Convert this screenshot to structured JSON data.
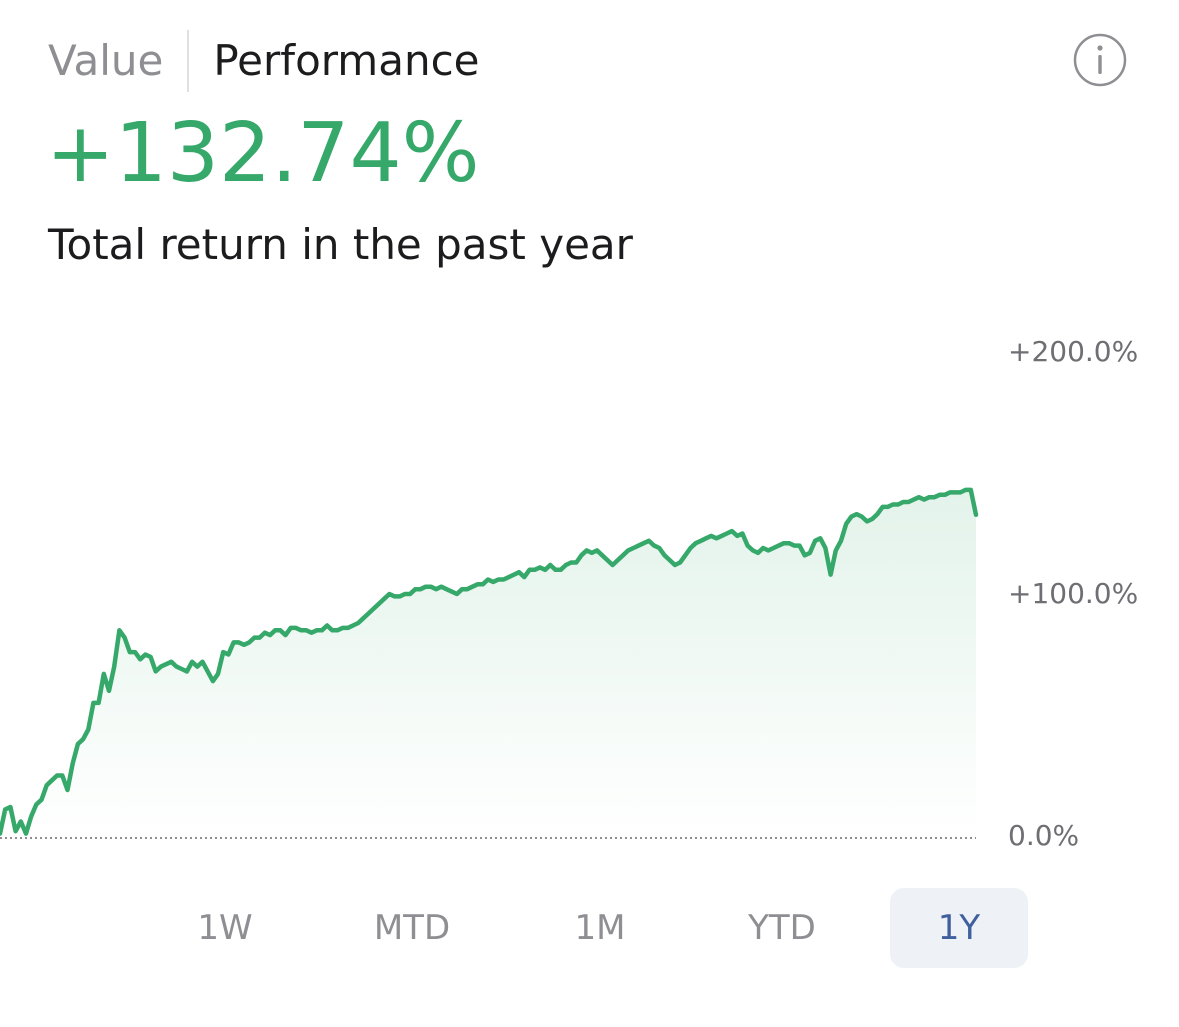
{
  "tabs": [
    {
      "label": "Value",
      "active": false
    },
    {
      "label": "Performance",
      "active": true
    }
  ],
  "info_icon": "info-circle-icon",
  "headline": {
    "value": "+132.74%",
    "caption": "Total return in the past year"
  },
  "colors": {
    "positive": "#35a86a",
    "selected_range_bg": "#eef1f6",
    "selected_range_text": "#3f5f9e",
    "muted_text": "#8e8e93"
  },
  "time_ranges": [
    {
      "label": "1W",
      "selected": false
    },
    {
      "label": "MTD",
      "selected": false
    },
    {
      "label": "1M",
      "selected": false
    },
    {
      "label": "YTD",
      "selected": false
    },
    {
      "label": "1Y",
      "selected": true
    }
  ],
  "chart_data": {
    "type": "area",
    "y_ticks": [
      {
        "value": 200,
        "label": "+200.0%"
      },
      {
        "value": 100,
        "label": "+100.0%"
      },
      {
        "value": 0,
        "label": "0.0%"
      }
    ],
    "ylim": [
      0,
      200
    ],
    "baseline": 0,
    "baseline_style": "dotted",
    "grid": false,
    "series": [
      {
        "values": [
          1,
          11,
          12,
          2,
          6,
          1,
          8,
          13,
          15,
          21,
          23,
          25,
          25,
          19,
          30,
          38,
          40,
          44,
          55,
          55,
          67,
          60,
          70,
          85,
          82,
          76,
          76,
          73,
          75,
          74,
          68,
          70,
          71,
          72,
          70,
          69,
          68,
          72,
          70,
          72,
          68,
          64,
          67,
          76,
          75,
          80,
          80,
          79,
          80,
          82,
          82,
          84,
          83,
          85,
          85,
          83,
          86,
          86,
          85,
          85,
          84,
          85,
          85,
          87,
          85,
          85,
          86,
          86,
          87,
          88,
          90,
          92,
          94,
          96,
          98,
          100,
          99,
          99,
          100,
          100,
          102,
          102,
          103,
          103,
          102,
          103,
          102,
          101,
          100,
          102,
          102,
          103,
          104,
          104,
          106,
          105,
          106,
          106,
          107,
          108,
          109,
          107,
          110,
          110,
          111,
          110,
          112,
          110,
          110,
          112,
          113,
          113,
          116,
          118,
          117,
          118,
          116,
          114,
          112,
          114,
          116,
          118,
          119,
          120,
          121,
          122,
          120,
          119,
          116,
          114,
          112,
          113,
          116,
          119,
          121,
          122,
          123,
          124,
          123,
          124,
          125,
          126,
          124,
          125,
          120,
          118,
          117,
          119,
          118,
          119,
          120,
          121,
          121,
          120,
          120,
          116,
          117,
          122,
          123,
          119,
          108,
          118,
          122,
          129,
          132,
          133,
          132,
          130,
          131,
          133,
          136,
          136,
          137,
          137,
          138,
          138,
          139,
          140,
          139,
          140,
          140,
          141,
          141,
          142,
          142,
          142,
          143,
          143,
          132.74
        ]
      }
    ]
  }
}
